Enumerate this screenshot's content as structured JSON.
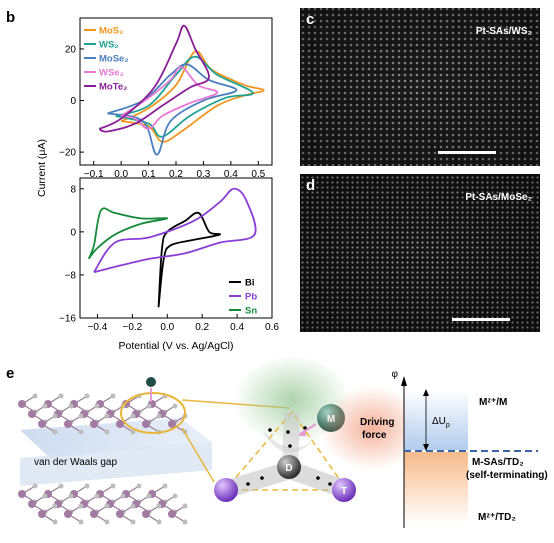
{
  "panel_labels": {
    "b": "b",
    "c": "c",
    "d": "d",
    "e": "e"
  },
  "micrographs": {
    "c_label": "Pt-SAs/WS₂",
    "d_label": "Pt-SAs/MoSe₂"
  },
  "axes": {
    "ylabel": "Current (μA)",
    "xlabel": "Potential (V vs. Ag/AgCl)"
  },
  "chart_data": [
    {
      "type": "line",
      "panel": "b-top",
      "xlim": [
        -0.15,
        0.55
      ],
      "ylim": [
        -25,
        32
      ],
      "xticks": [
        "−0.1",
        "0.0",
        "0.1",
        "0.2",
        "0.3",
        "0.4",
        "0.5"
      ],
      "yticks": [
        "−20",
        "0",
        "20"
      ],
      "series": [
        {
          "name": "MoS₂",
          "color": "#f0961e"
        },
        {
          "name": "WS₂",
          "color": "#1fa290"
        },
        {
          "name": "MoSe₂",
          "color": "#4b7fbf"
        },
        {
          "name": "WSe₂",
          "color": "#e87ad6"
        },
        {
          "name": "MoTe₂",
          "color": "#8a1e96"
        }
      ]
    },
    {
      "type": "line",
      "panel": "b-bottom",
      "xlim": [
        -0.5,
        0.6
      ],
      "ylim": [
        -16,
        10
      ],
      "xticks": [
        "−0.4",
        "−0.2",
        "0.0",
        "0.2",
        "0.4",
        "0.6"
      ],
      "yticks": [
        "−16",
        "−8",
        "0",
        "8"
      ],
      "series": [
        {
          "name": "Bi",
          "color": "#000000"
        },
        {
          "name": "Pb",
          "color": "#8a3ed6"
        },
        {
          "name": "Sn",
          "color": "#168a3a"
        }
      ]
    }
  ],
  "scheme": {
    "vdw_gap": "van der Waals gap",
    "atom_M": "M",
    "atom_D": "D",
    "atom_T": "T",
    "driving_force": "Driving force",
    "phi": "φ",
    "delta_U": "ΔU",
    "delta_U_sub": "p",
    "level_top": "Mᶻ⁺/M",
    "level_mid": "M-SAs/TD₂",
    "level_mid_note": "(self-terminating)",
    "level_bottom": "Mᶻ⁺/TD₂"
  }
}
